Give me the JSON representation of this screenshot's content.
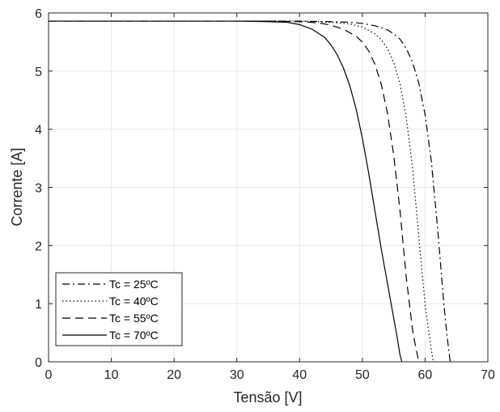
{
  "chart_data": {
    "type": "line",
    "title": "",
    "xlabel": "Tensão [V]",
    "ylabel": "Corrente [A]",
    "xlim": [
      0,
      70
    ],
    "ylim": [
      0,
      6
    ],
    "xticks": [
      "0",
      "10",
      "20",
      "30",
      "40",
      "50",
      "60",
      "70"
    ],
    "yticks": [
      "0",
      "1",
      "2",
      "3",
      "4",
      "5",
      "6"
    ],
    "grid": true,
    "legend_position": "bottom-left",
    "line_color": "#000000",
    "series": [
      {
        "name": "Tc = 25ºC",
        "style": "dash-dot",
        "x": [
          0,
          10,
          20,
          30,
          35,
          40,
          45,
          48,
          50,
          52,
          54,
          55,
          56,
          57,
          58,
          59,
          60,
          61,
          62,
          63,
          63.5,
          64.0
        ],
        "y": [
          5.86,
          5.86,
          5.86,
          5.86,
          5.86,
          5.86,
          5.85,
          5.84,
          5.82,
          5.78,
          5.71,
          5.64,
          5.55,
          5.39,
          5.15,
          4.79,
          4.25,
          3.44,
          2.29,
          0.98,
          0.44,
          0
        ]
      },
      {
        "name": "Tc = 40ºC",
        "style": "dotted",
        "x": [
          0,
          10,
          20,
          30,
          35,
          40,
          45,
          48,
          50,
          52,
          53,
          54,
          55,
          56,
          57,
          58,
          59,
          60,
          60.5,
          61,
          61.3
        ],
        "y": [
          5.86,
          5.86,
          5.86,
          5.86,
          5.86,
          5.86,
          5.84,
          5.81,
          5.76,
          5.64,
          5.54,
          5.39,
          5.15,
          4.78,
          4.2,
          3.34,
          2.15,
          0.98,
          0.58,
          0.2,
          0
        ]
      },
      {
        "name": "Tc = 55ºC",
        "style": "dashed",
        "x": [
          0,
          10,
          20,
          30,
          35,
          40,
          43,
          45,
          47,
          49,
          50,
          51,
          52,
          53,
          54,
          55,
          56,
          57,
          58,
          58.5,
          59.0
        ],
        "y": [
          5.86,
          5.86,
          5.86,
          5.86,
          5.86,
          5.85,
          5.83,
          5.79,
          5.72,
          5.6,
          5.5,
          5.35,
          5.12,
          4.78,
          4.28,
          3.55,
          2.6,
          1.45,
          0.55,
          0.25,
          0
        ]
      },
      {
        "name": "Tc = 70ºC",
        "style": "solid",
        "x": [
          0,
          10,
          20,
          30,
          35,
          38,
          40,
          42,
          44,
          45,
          46,
          47,
          48,
          49,
          50,
          51,
          52,
          53,
          54,
          55,
          55.5,
          56.0,
          56.3
        ],
        "y": [
          5.86,
          5.86,
          5.86,
          5.86,
          5.85,
          5.84,
          5.8,
          5.72,
          5.58,
          5.45,
          5.28,
          5.05,
          4.75,
          4.35,
          3.85,
          3.25,
          2.6,
          1.95,
          1.35,
          0.75,
          0.45,
          0.12,
          0
        ]
      }
    ]
  }
}
